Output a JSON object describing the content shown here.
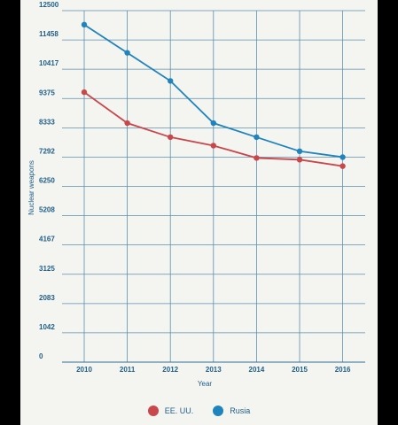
{
  "chart_data": {
    "type": "line",
    "title": "",
    "xlabel": "Year",
    "ylabel": "Nuclear weapons",
    "categories": [
      "2010",
      "2011",
      "2012",
      "2013",
      "2014",
      "2015",
      "2016"
    ],
    "y_ticks": [
      "0",
      "1042",
      "2083",
      "3125",
      "4167",
      "5208",
      "6250",
      "7292",
      "8333",
      "9375",
      "10417",
      "11458",
      "12500"
    ],
    "ylim": [
      0,
      12500
    ],
    "grid": true,
    "legend_position": "bottom",
    "series": [
      {
        "name": "EE. UU.",
        "color": "#c9474b",
        "values": [
          9600,
          8500,
          8000,
          7700,
          7260,
          7200,
          6970
        ]
      },
      {
        "name": "Rusia",
        "color": "#1f83bd",
        "values": [
          12000,
          11000,
          10000,
          8500,
          8000,
          7500,
          7290
        ]
      }
    ]
  }
}
